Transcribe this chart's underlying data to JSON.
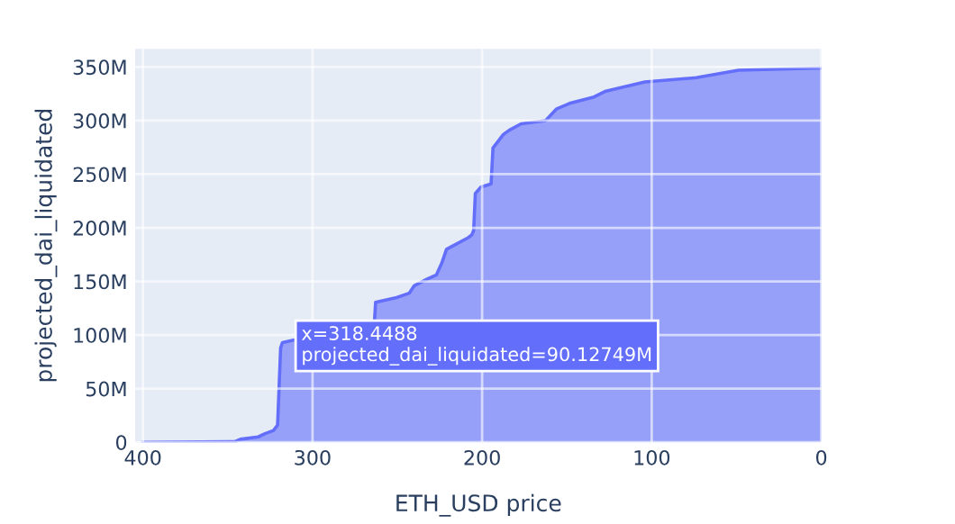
{
  "chart_data": {
    "type": "area",
    "xlabel": "ETH_USD price",
    "ylabel": "projected_dai_liquidated",
    "xlim": [
      404.6,
      0
    ],
    "xticks": [
      400,
      300,
      200,
      100,
      0
    ],
    "ylim": [
      0,
      367
    ],
    "yticks": [
      {
        "value": 0,
        "label": "0"
      },
      {
        "value": 50,
        "label": "50M"
      },
      {
        "value": 100,
        "label": "100M"
      },
      {
        "value": 150,
        "label": "150M"
      },
      {
        "value": 200,
        "label": "200M"
      },
      {
        "value": 250,
        "label": "250M"
      },
      {
        "value": 300,
        "label": "300M"
      },
      {
        "value": 350,
        "label": "350M"
      }
    ],
    "grid": true,
    "annotations": [
      {
        "text": "x=318.4488\nprojected_dai_liquidated=90.12749M",
        "x": 318.4488,
        "y": 90.12749
      }
    ],
    "series": [
      {
        "color": "#636efa",
        "x": [
          400,
          346,
          342.5,
          332,
          328,
          323,
          320.6,
          318.8,
          317.7,
          263.5,
          262.8,
          250.4,
          243,
          240,
          232.6,
          227,
          223.8,
          221,
          215,
          208,
          206,
          205,
          204,
          200.7,
          194.7,
          193.6,
          187.5,
          184,
          177,
          162.6,
          156,
          148.4,
          134,
          127,
          104,
          73.7,
          48.8,
          0
        ],
        "values": [
          0,
          0.5,
          2.8,
          5,
          8,
          11,
          16,
          88,
          93,
          112,
          130.6,
          135,
          139,
          146,
          152,
          156,
          167,
          180,
          185,
          191,
          193.6,
          197.5,
          232,
          238,
          241,
          274.5,
          287,
          291,
          297,
          300,
          311,
          316,
          322,
          327.5,
          336,
          340,
          347,
          349
        ]
      }
    ]
  }
}
